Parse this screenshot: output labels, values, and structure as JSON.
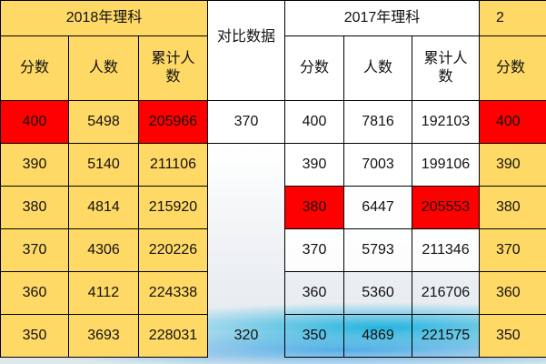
{
  "colors": {
    "header_fill": "#FFD966",
    "highlight": "#FF0000",
    "border": "#000000"
  },
  "groups": [
    {
      "title": "2018年理科",
      "columns": [
        "分数",
        "人数",
        "累计人数"
      ]
    },
    {
      "title": "2017年理科",
      "columns": [
        "分数",
        "人数",
        "累计人数"
      ]
    },
    {
      "title": "2",
      "columns": [
        "分数"
      ]
    }
  ],
  "compare_header": "对比数据",
  "rows": [
    {
      "a_score": "400",
      "a_count": "5498",
      "a_cum": "205966",
      "compare": "370",
      "b_score": "400",
      "b_count": "7816",
      "b_cum": "192103",
      "c_score": "400"
    },
    {
      "a_score": "390",
      "a_count": "5140",
      "a_cum": "211106",
      "compare": "",
      "b_score": "390",
      "b_count": "7003",
      "b_cum": "199106",
      "c_score": "390"
    },
    {
      "a_score": "380",
      "a_count": "4814",
      "a_cum": "215920",
      "compare": "",
      "b_score": "380",
      "b_count": "6447",
      "b_cum": "205553",
      "c_score": "380"
    },
    {
      "a_score": "370",
      "a_count": "4306",
      "a_cum": "220226",
      "compare": "",
      "b_score": "370",
      "b_count": "5793",
      "b_cum": "211346",
      "c_score": "370"
    },
    {
      "a_score": "360",
      "a_count": "4112",
      "a_cum": "224338",
      "compare": "",
      "b_score": "360",
      "b_count": "5360",
      "b_cum": "216706",
      "c_score": "360"
    },
    {
      "a_score": "350",
      "a_count": "3693",
      "a_cum": "228031",
      "compare": "320",
      "b_score": "350",
      "b_count": "4869",
      "b_cum": "221575",
      "c_score": "350"
    }
  ],
  "highlighted": [
    "rows.0.a_score",
    "rows.0.a_cum",
    "rows.0.c_score",
    "rows.2.b_score",
    "rows.2.b_cum"
  ]
}
